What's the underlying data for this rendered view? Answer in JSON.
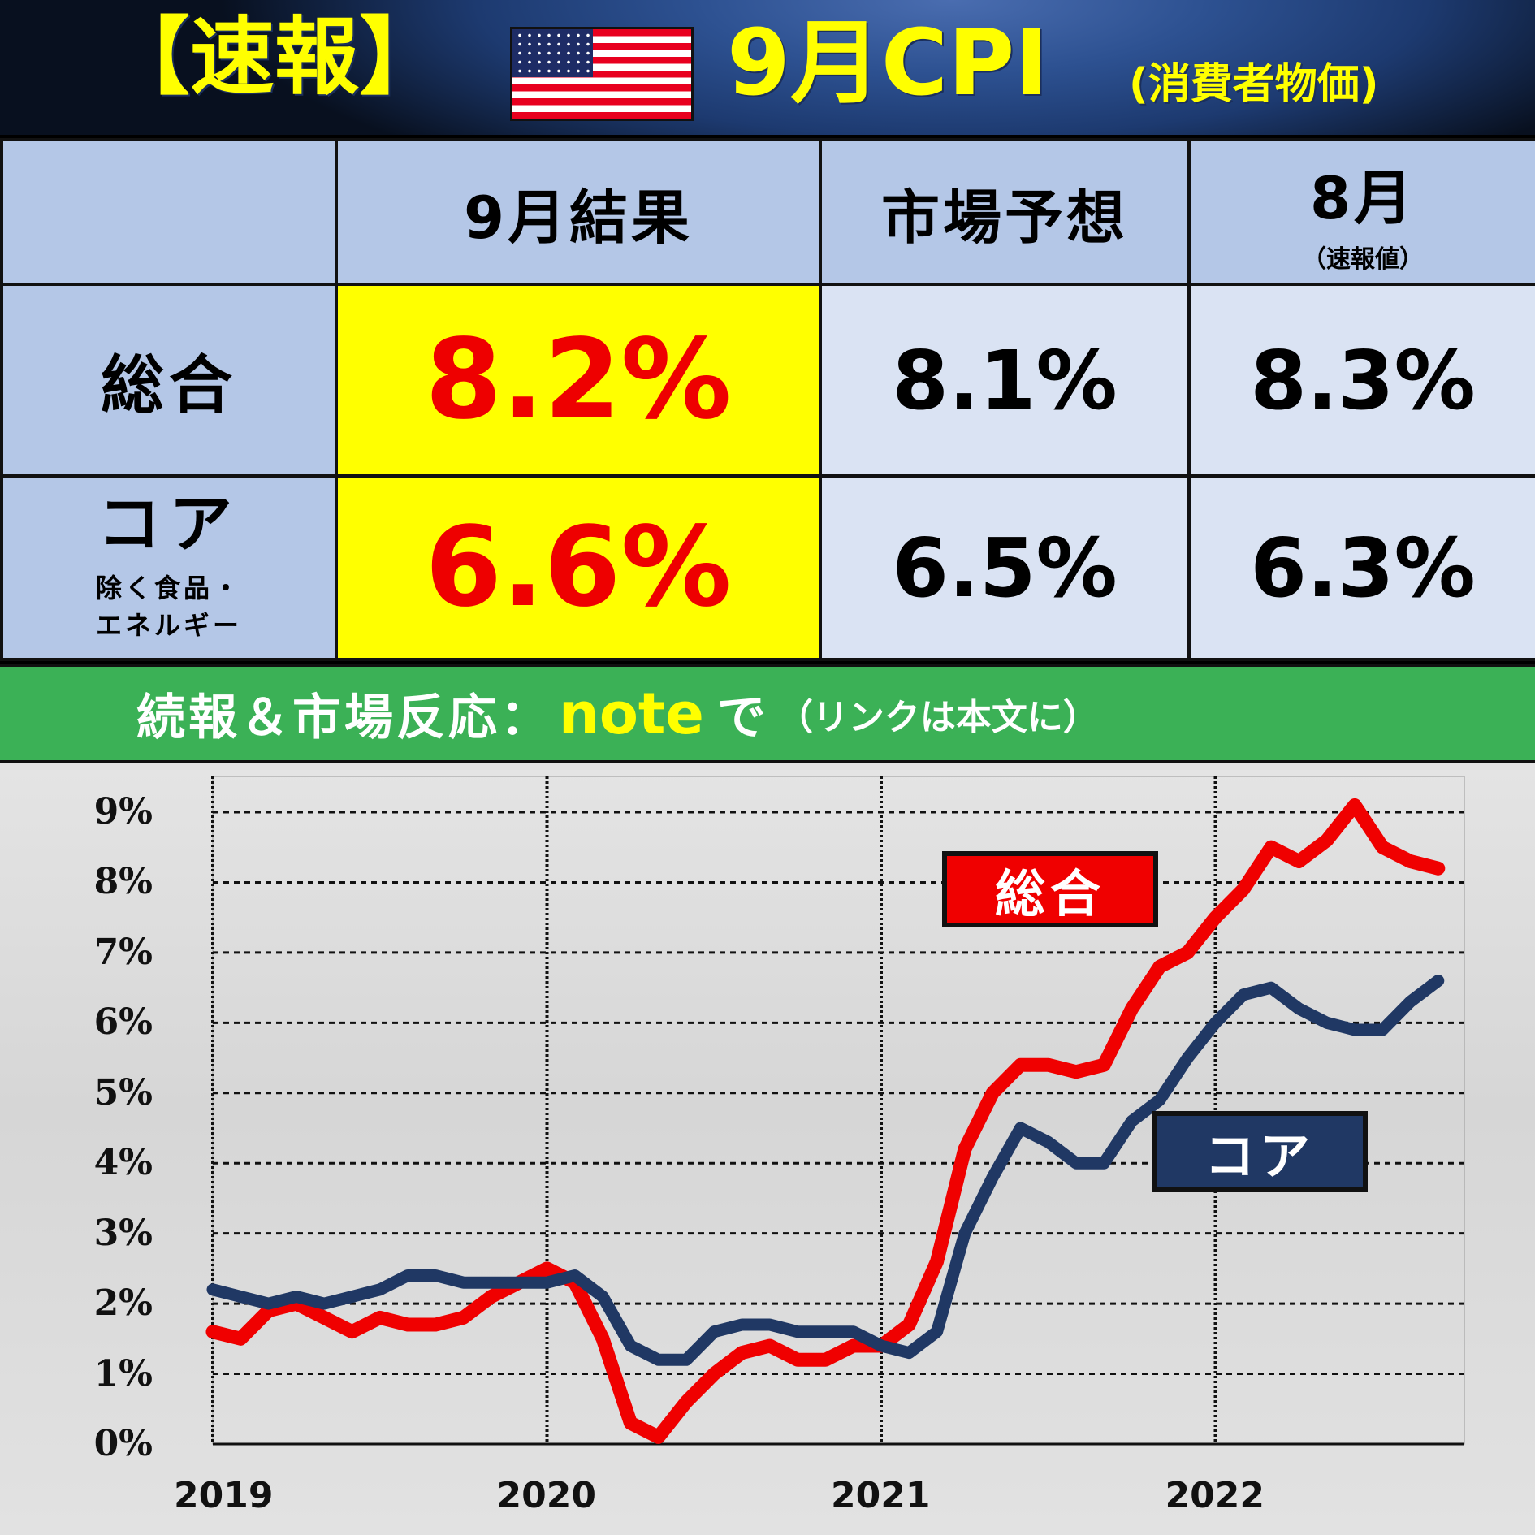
{
  "header": {
    "badge": "【速報】",
    "flag_icon": "us-flag-icon",
    "title": "9月CPI",
    "subtitle": "(消費者物価)"
  },
  "table": {
    "columns": [
      "",
      "9月結果",
      "市場予想",
      "8月"
    ],
    "col3_sub": "（速報値）",
    "rows": [
      {
        "label": "総合",
        "sub": "",
        "result": "8.2%",
        "forecast": "8.1%",
        "previous": "8.3%"
      },
      {
        "label": "コア",
        "sub1": "除く食品・",
        "sub2": "エネルギー",
        "result": "6.6%",
        "forecast": "6.5%",
        "previous": "6.3%"
      }
    ]
  },
  "banner": {
    "text1": "続報＆市場反応：",
    "highlight": "note",
    "text2": "で",
    "small": "（リンクは本文に）"
  },
  "colors": {
    "headline": "#f00000",
    "core": "#203864",
    "highlight_cell": "#ffff00",
    "header_cell": "#b4c7e7",
    "value_cell": "#dae3f3",
    "banner": "#3bb156",
    "title_text": "#ffff00"
  },
  "chart_data": {
    "type": "line",
    "title": "",
    "xlabel": "",
    "ylabel": "",
    "ylim": [
      0,
      9
    ],
    "yticks": [
      "0%",
      "1%",
      "2%",
      "3%",
      "4%",
      "5%",
      "6%",
      "7%",
      "8%",
      "9%"
    ],
    "xticks": [
      "2019",
      "2020",
      "2021",
      "2022"
    ],
    "grid": true,
    "x_start": "2019-01",
    "x_end": "2022-09",
    "legend": [
      "総合",
      "コア"
    ],
    "series": [
      {
        "name": "総合",
        "color": "#f00000",
        "values": [
          1.6,
          1.5,
          1.9,
          2.0,
          1.8,
          1.6,
          1.8,
          1.7,
          1.7,
          1.8,
          2.1,
          2.3,
          2.5,
          2.3,
          1.5,
          0.3,
          0.1,
          0.6,
          1.0,
          1.3,
          1.4,
          1.2,
          1.2,
          1.4,
          1.4,
          1.7,
          2.6,
          4.2,
          5.0,
          5.4,
          5.4,
          5.3,
          5.4,
          6.2,
          6.8,
          7.0,
          7.5,
          7.9,
          8.5,
          8.3,
          8.6,
          9.1,
          8.5,
          8.3,
          8.2
        ]
      },
      {
        "name": "コア",
        "color": "#203864",
        "values": [
          2.2,
          2.1,
          2.0,
          2.1,
          2.0,
          2.1,
          2.2,
          2.4,
          2.4,
          2.3,
          2.3,
          2.3,
          2.3,
          2.4,
          2.1,
          1.4,
          1.2,
          1.2,
          1.6,
          1.7,
          1.7,
          1.6,
          1.6,
          1.6,
          1.4,
          1.3,
          1.6,
          3.0,
          3.8,
          4.5,
          4.3,
          4.0,
          4.0,
          4.6,
          4.9,
          5.5,
          6.0,
          6.4,
          6.5,
          6.2,
          6.0,
          5.9,
          5.9,
          6.3,
          6.6
        ]
      }
    ]
  }
}
